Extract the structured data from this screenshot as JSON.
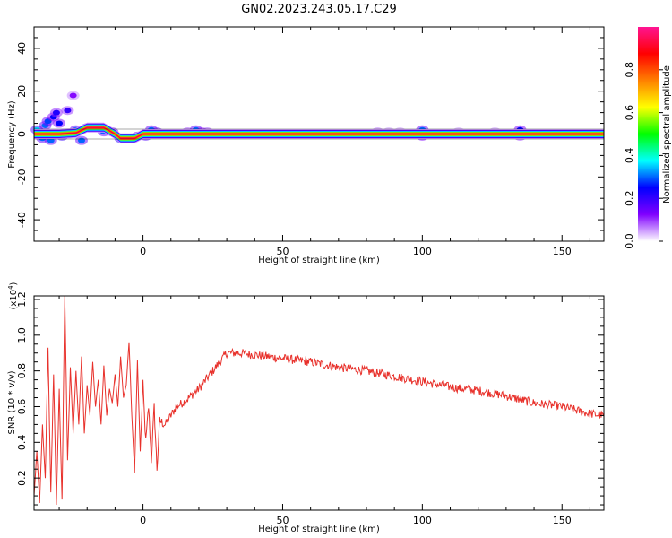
{
  "title": "GN02.2023.243.05.17.C29",
  "chart_data": [
    {
      "type": "heatmap",
      "panel": "top",
      "xlabel": "Height of straight line (km)",
      "ylabel": "Frequency (Hz)",
      "xlim": [
        -39,
        165
      ],
      "ylim": [
        -50,
        50
      ],
      "xticks": [
        0,
        50,
        100,
        150
      ],
      "yticks": [
        40,
        20,
        0,
        -20,
        -40
      ],
      "band_center_hz": 0,
      "blobs": [
        {
          "x": -38,
          "y": 2,
          "a": 0.35
        },
        {
          "x": -37,
          "y": 0,
          "a": 0.45
        },
        {
          "x": -36,
          "y": -2,
          "a": 0.3
        },
        {
          "x": -35,
          "y": 4,
          "a": 0.3
        },
        {
          "x": -34,
          "y": 6,
          "a": 0.28
        },
        {
          "x": -33,
          "y": -3,
          "a": 0.3
        },
        {
          "x": -32,
          "y": 8,
          "a": 0.25
        },
        {
          "x": -31,
          "y": 10,
          "a": 0.22
        },
        {
          "x": -30,
          "y": 5,
          "a": 0.25
        },
        {
          "x": -29,
          "y": -1,
          "a": 0.4
        },
        {
          "x": -27,
          "y": 11,
          "a": 0.2
        },
        {
          "x": -25,
          "y": 18,
          "a": 0.12
        },
        {
          "x": -24,
          "y": 2,
          "a": 0.3
        },
        {
          "x": -22,
          "y": -3,
          "a": 0.3
        },
        {
          "x": -20,
          "y": 3,
          "a": 0.5
        },
        {
          "x": -18,
          "y": 3,
          "a": 0.5
        },
        {
          "x": -16,
          "y": 3,
          "a": 0.45
        },
        {
          "x": -14,
          "y": 1,
          "a": 0.3
        },
        {
          "x": -11,
          "y": 1,
          "a": 0.3
        },
        {
          "x": -8,
          "y": -2,
          "a": 0.45
        },
        {
          "x": -6,
          "y": -2,
          "a": 0.45
        },
        {
          "x": -4,
          "y": -2,
          "a": 0.4
        },
        {
          "x": -2,
          "y": -1,
          "a": 0.35
        },
        {
          "x": 1,
          "y": -1,
          "a": 0.35
        },
        {
          "x": 3,
          "y": 2,
          "a": 0.3
        },
        {
          "x": 5,
          "y": 1,
          "a": 0.3
        },
        {
          "x": 16,
          "y": 1,
          "a": 0.2
        },
        {
          "x": 19,
          "y": 2,
          "a": 0.3
        },
        {
          "x": 21,
          "y": 1,
          "a": 0.25
        },
        {
          "x": 23,
          "y": 1,
          "a": 0.2
        },
        {
          "x": 84,
          "y": 1,
          "a": 0.15
        },
        {
          "x": 88,
          "y": 1,
          "a": 0.12
        },
        {
          "x": 92,
          "y": 1,
          "a": 0.12
        },
        {
          "x": 100,
          "y": 2,
          "a": 0.3
        },
        {
          "x": 100,
          "y": -1,
          "a": 0.25
        },
        {
          "x": 113,
          "y": 1,
          "a": 0.12
        },
        {
          "x": 126,
          "y": 1,
          "a": 0.12
        },
        {
          "x": 135,
          "y": 2,
          "a": 0.25
        },
        {
          "x": 135,
          "y": -1,
          "a": 0.2
        }
      ],
      "colorbar": {
        "label": "Normalized spectral amplitude",
        "ticks": [
          "0.0",
          "0.2",
          "0.4",
          "0.6",
          "0.8"
        ],
        "range": [
          0,
          1
        ],
        "colors": [
          "#ffffff",
          "#8000ff",
          "#0000ff",
          "#00ffff",
          "#00ff00",
          "#ffff00",
          "#ff8000",
          "#ff0000",
          "#ff1493"
        ]
      }
    },
    {
      "type": "line",
      "panel": "bottom",
      "xlabel": "Height of straight line (km)",
      "ylabel": "SNR (10 * v/v)",
      "scale_label": "(x10",
      "scale_exp": "4",
      "scale_close": ")",
      "xlim": [
        -39,
        165
      ],
      "ylim": [
        0.02,
        1.22
      ],
      "xticks": [
        0,
        50,
        100,
        150
      ],
      "yticks": [
        "0.2",
        "0.4",
        "0.6",
        "0.8",
        "1.0",
        "1.2"
      ],
      "color": "#e8312b",
      "x": [
        -39,
        -38,
        -37,
        -36,
        -35,
        -34,
        -33,
        -32,
        -31,
        -30,
        -29,
        -28,
        -27,
        -26,
        -25,
        -24,
        -23,
        -22,
        -21,
        -20,
        -19,
        -18,
        -17,
        -16,
        -15,
        -14,
        -13,
        -12,
        -11,
        -10,
        -9,
        -8,
        -7,
        -6,
        -5,
        -4,
        -3,
        -2,
        -1,
        0,
        1,
        2,
        3,
        4,
        5,
        6,
        8,
        10,
        12,
        15,
        20,
        25,
        30,
        32,
        35,
        40,
        50,
        60,
        70,
        80,
        90,
        100,
        110,
        120,
        130,
        140,
        150,
        160,
        165
      ],
      "values": [
        0.1,
        0.35,
        0.06,
        0.5,
        0.2,
        0.93,
        0.12,
        0.78,
        0.05,
        0.7,
        0.08,
        1.22,
        0.3,
        0.82,
        0.45,
        0.8,
        0.5,
        0.88,
        0.45,
        0.72,
        0.55,
        0.85,
        0.6,
        0.75,
        0.5,
        0.83,
        0.55,
        0.7,
        0.62,
        0.78,
        0.6,
        0.88,
        0.65,
        0.72,
        0.96,
        0.55,
        0.23,
        0.86,
        0.35,
        0.72,
        0.4,
        0.6,
        0.3,
        0.6,
        0.25,
        0.52,
        0.5,
        0.55,
        0.6,
        0.63,
        0.7,
        0.8,
        0.9,
        0.9,
        0.9,
        0.89,
        0.87,
        0.85,
        0.82,
        0.8,
        0.77,
        0.74,
        0.71,
        0.69,
        0.66,
        0.62,
        0.6,
        0.56,
        0.55
      ],
      "noise_amp": 0.025
    }
  ]
}
